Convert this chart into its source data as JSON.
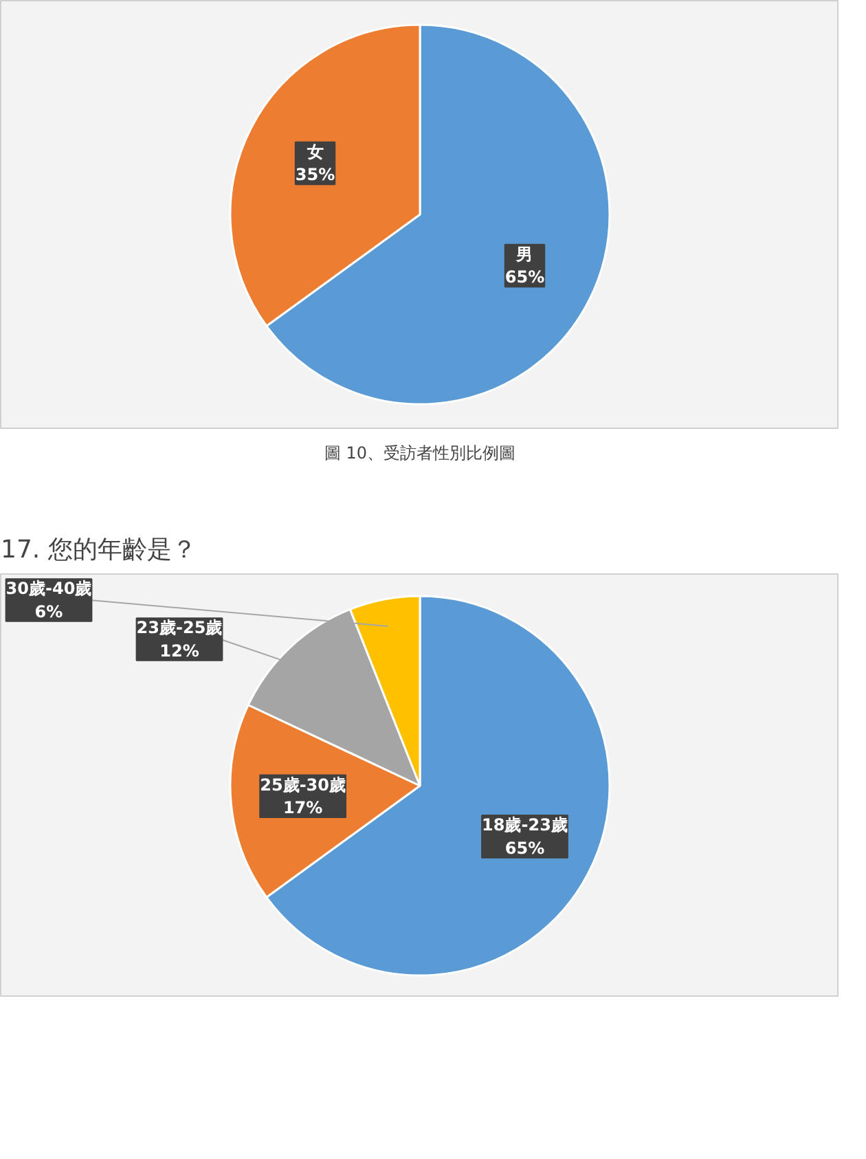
{
  "chart_data": [
    {
      "type": "pie",
      "annotations": [
        "圖 10、受訪者性別比例圖"
      ],
      "categories": [
        "男",
        "女"
      ],
      "values": [
        65,
        35
      ],
      "colors": [
        "#5b9bd5",
        "#ed7d31"
      ],
      "value_labels": [
        "65%",
        "35%"
      ]
    },
    {
      "type": "pie",
      "title": "17. 您的年齡是？",
      "categories": [
        "18歲-23歲",
        "25歲-30歲",
        "23歲-25歲",
        "30歲-40歲"
      ],
      "values": [
        65,
        17,
        12,
        6
      ],
      "colors": [
        "#5b9bd5",
        "#ed7d31",
        "#a5a5a5",
        "#ffc000"
      ],
      "value_labels": [
        "65%",
        "17%",
        "12%",
        "6%"
      ]
    }
  ]
}
